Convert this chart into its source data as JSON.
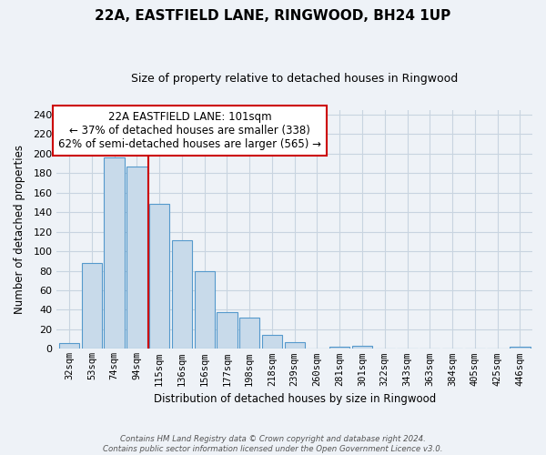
{
  "title": "22A, EASTFIELD LANE, RINGWOOD, BH24 1UP",
  "subtitle": "Size of property relative to detached houses in Ringwood",
  "xlabel": "Distribution of detached houses by size in Ringwood",
  "ylabel": "Number of detached properties",
  "bar_labels": [
    "32sqm",
    "53sqm",
    "74sqm",
    "94sqm",
    "115sqm",
    "136sqm",
    "156sqm",
    "177sqm",
    "198sqm",
    "218sqm",
    "239sqm",
    "260sqm",
    "281sqm",
    "301sqm",
    "322sqm",
    "343sqm",
    "363sqm",
    "384sqm",
    "405sqm",
    "425sqm",
    "446sqm"
  ],
  "bar_values": [
    6,
    88,
    196,
    187,
    149,
    111,
    80,
    38,
    32,
    14,
    7,
    0,
    2,
    3,
    0,
    0,
    0,
    0,
    0,
    0,
    2
  ],
  "bar_color": "#c8daea",
  "bar_edge_color": "#5599cc",
  "property_line_color": "#cc0000",
  "property_line_x": 3.5,
  "ylim": [
    0,
    245
  ],
  "yticks": [
    0,
    20,
    40,
    60,
    80,
    100,
    120,
    140,
    160,
    180,
    200,
    220,
    240
  ],
  "annotation_title": "22A EASTFIELD LANE: 101sqm",
  "annotation_line1": "← 37% of detached houses are smaller (338)",
  "annotation_line2": "62% of semi-detached houses are larger (565) →",
  "annotation_box_color": "#ffffff",
  "annotation_box_edge": "#cc0000",
  "footer_line1": "Contains HM Land Registry data © Crown copyright and database right 2024.",
  "footer_line2": "Contains public sector information licensed under the Open Government Licence v3.0.",
  "background_color": "#eef2f7",
  "grid_color": "#c8d4e0"
}
